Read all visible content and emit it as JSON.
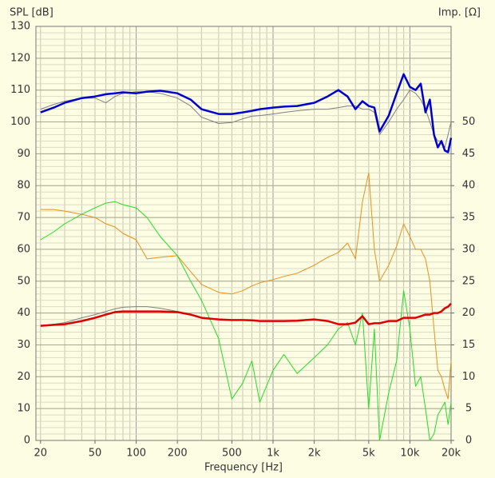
{
  "chart_data": {
    "type": "line",
    "y_label": "SPL [dB]",
    "y2_label": "Imp. [Ω]",
    "x_label": "Frequency [Hz]",
    "log_x": true,
    "grid": true,
    "xlim": [
      18.5,
      20000
    ],
    "ylim": [
      0,
      130
    ],
    "y2lim": [
      0,
      65
    ],
    "xticks": [
      20,
      50,
      100,
      200,
      500,
      {
        "value": 1000,
        "label": "1k"
      },
      {
        "value": 2000,
        "label": "2k"
      },
      {
        "value": 5000,
        "label": "5k"
      },
      {
        "value": 10000,
        "label": "10k"
      },
      {
        "value": 20000,
        "label": "20k"
      }
    ],
    "yticks": [
      0,
      10,
      20,
      30,
      40,
      50,
      60,
      70,
      80,
      90,
      100,
      110,
      120,
      130
    ],
    "y2ticks": [
      0,
      5,
      10,
      15,
      20,
      25,
      30,
      35,
      40,
      45,
      50
    ],
    "x": [
      20,
      25,
      30,
      40,
      50,
      60,
      70,
      80,
      100,
      120,
      150,
      200,
      250,
      300,
      400,
      500,
      600,
      700,
      800,
      1000,
      1200,
      1500,
      2000,
      2500,
      3000,
      3500,
      4000,
      4500,
      5000,
      5500,
      6000,
      7000,
      8000,
      9000,
      10000,
      11000,
      12000,
      13000,
      14000,
      15000,
      16000,
      17000,
      18000,
      19000,
      20000
    ],
    "series": [
      {
        "color": "#808080",
        "values": [
          104,
          105.5,
          106.5,
          107.5,
          107.5,
          106,
          108,
          109,
          109.5,
          109.5,
          109,
          107.5,
          105,
          101.5,
          99.5,
          99.8,
          101,
          101.8,
          102,
          102.5,
          103,
          103.5,
          104,
          104,
          104.5,
          105,
          105,
          104,
          104,
          103,
          96,
          100,
          104,
          107,
          110,
          109,
          107,
          104,
          100,
          96,
          94,
          94,
          92,
          96,
          100
        ]
      },
      {
        "color": "#e8901a",
        "values": [
          72.5,
          72.5,
          72,
          71,
          70,
          68,
          67,
          65,
          63,
          57,
          57.5,
          58,
          53,
          49,
          46.5,
          46,
          47,
          48.5,
          49.5,
          50.5,
          51.5,
          52.5,
          55,
          57.5,
          59,
          62,
          57,
          75,
          84,
          60,
          50,
          55,
          61,
          68,
          64,
          60,
          60,
          57,
          50,
          35,
          22,
          20,
          16,
          13,
          25
        ]
      },
      {
        "color": "#22dd22",
        "values": [
          63,
          65.5,
          68,
          71,
          73,
          74.5,
          75,
          74,
          73,
          70,
          64,
          58,
          50,
          44,
          32,
          13,
          18,
          25,
          12,
          22,
          27,
          21,
          26,
          30,
          35,
          37,
          30,
          40,
          10,
          35,
          0,
          15,
          25,
          47,
          35,
          17,
          20,
          10,
          0,
          2,
          8,
          10,
          12,
          5,
          12
        ]
      },
      {
        "color": "#808080",
        "values": [
          36,
          36.5,
          37,
          38.5,
          39.5,
          40.5,
          41.3,
          41.8,
          42,
          42,
          41.5,
          40.5,
          39.5,
          38.5,
          38,
          37.8,
          37.8,
          37.7,
          37.5,
          37.5,
          37.5,
          37.6,
          38,
          37.5,
          36.5,
          36.5,
          37,
          39,
          36.5,
          36.8,
          36.8,
          37.5,
          37.5,
          38.5,
          38.5,
          38.5,
          39,
          39.5,
          39.5,
          40,
          40,
          40.5,
          41.5,
          42,
          43
        ]
      },
      {
        "color": "#dd0000",
        "values": [
          36,
          36.3,
          36.5,
          37.5,
          38.5,
          39.5,
          40.3,
          40.5,
          40.5,
          40.5,
          40.5,
          40.3,
          39.5,
          38.5,
          38,
          37.8,
          37.8,
          37.7,
          37.5,
          37.5,
          37.5,
          37.6,
          38,
          37.5,
          36.5,
          36.5,
          37,
          39,
          36.5,
          36.8,
          36.8,
          37.5,
          37.5,
          38.5,
          38.5,
          38.5,
          39,
          39.5,
          39.5,
          40,
          40,
          40.5,
          41.5,
          42,
          43
        ]
      },
      {
        "color": "#0000cc",
        "values": [
          103,
          104.5,
          106,
          107.5,
          108,
          108.7,
          109,
          109.3,
          109,
          109.5,
          109.8,
          109,
          107,
          104,
          102.5,
          102.5,
          103,
          103.5,
          104,
          104.5,
          104.8,
          105,
          106,
          108,
          110,
          108,
          104,
          106.5,
          105,
          104.5,
          97,
          102,
          109,
          115,
          111,
          110,
          112,
          103,
          107,
          96,
          92,
          94,
          91,
          90.5,
          95
        ]
      }
    ]
  }
}
